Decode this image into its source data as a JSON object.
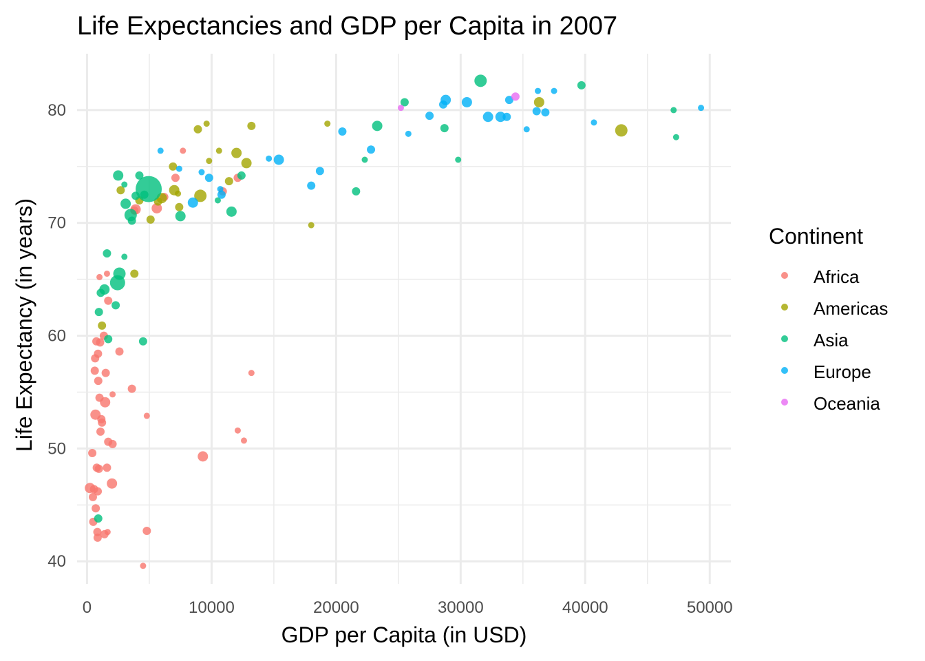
{
  "chart_data": {
    "type": "scatter",
    "title": "Life Expectancies and GDP per Capita in 2007",
    "xlabel": "GDP per Capita (in USD)",
    "ylabel": "Life Expectancy (in years)",
    "xlim": [
      -800,
      51700
    ],
    "ylim": [
      38,
      85
    ],
    "x_ticks": [
      0,
      10000,
      20000,
      30000,
      40000,
      50000
    ],
    "y_ticks": [
      40,
      50,
      60,
      70,
      80
    ],
    "grid": true,
    "legend": {
      "title": "Continent",
      "placement": "right",
      "entries": [
        "Africa",
        "Americas",
        "Asia",
        "Europe",
        "Oceania"
      ]
    },
    "colors": {
      "Africa": "#F8766D",
      "Americas": "#A3A500",
      "Asia": "#00BF7D",
      "Europe": "#00B0F6",
      "Oceania": "#E76BF3"
    },
    "series": [
      {
        "name": "Africa",
        "points": [
          [
            230,
            46.5,
            2
          ],
          [
            420,
            49.6,
            1
          ],
          [
            470,
            45.7,
            1
          ],
          [
            500,
            43.5,
            1
          ],
          [
            560,
            46.4,
            1
          ],
          [
            620,
            56.9,
            1
          ],
          [
            650,
            58.0,
            1
          ],
          [
            680,
            53.0,
            2
          ],
          [
            700,
            44.7,
            1
          ],
          [
            750,
            59.5,
            1
          ],
          [
            780,
            48.3,
            1
          ],
          [
            830,
            42.6,
            1
          ],
          [
            850,
            42.1,
            1
          ],
          [
            860,
            46.2,
            1
          ],
          [
            880,
            58.4,
            1
          ],
          [
            900,
            56.0,
            1
          ],
          [
            950,
            48.2,
            1
          ],
          [
            1000,
            54.5,
            1
          ],
          [
            1000,
            65.2,
            0
          ],
          [
            1050,
            59.4,
            1
          ],
          [
            1080,
            51.5,
            1
          ],
          [
            1150,
            52.6,
            1
          ],
          [
            1200,
            52.3,
            1
          ],
          [
            1350,
            60.0,
            1
          ],
          [
            1400,
            42.4,
            1
          ],
          [
            1450,
            54.1,
            2
          ],
          [
            1500,
            56.7,
            1
          ],
          [
            1600,
            48.3,
            1
          ],
          [
            1600,
            65.5,
            0
          ],
          [
            1700,
            50.6,
            1
          ],
          [
            1650,
            42.6,
            0
          ],
          [
            1700,
            63.1,
            1
          ],
          [
            2000,
            46.9,
            2
          ],
          [
            2050,
            50.4,
            1
          ],
          [
            2050,
            54.8,
            0
          ],
          [
            2600,
            58.6,
            1
          ],
          [
            3600,
            55.3,
            1
          ],
          [
            3800,
            71.1,
            1
          ],
          [
            3900,
            71.2,
            2
          ],
          [
            4500,
            39.6,
            0
          ],
          [
            4800,
            52.9,
            0
          ],
          [
            4800,
            42.7,
            1
          ],
          [
            5600,
            71.3,
            2
          ],
          [
            6200,
            72.3,
            1
          ],
          [
            7100,
            74.0,
            1
          ],
          [
            7700,
            76.4,
            0
          ],
          [
            9300,
            49.3,
            2
          ],
          [
            10900,
            72.8,
            1
          ],
          [
            12100,
            51.6,
            0
          ],
          [
            12600,
            50.7,
            0
          ],
          [
            12100,
            74.0,
            1
          ],
          [
            13200,
            56.7,
            0
          ]
        ]
      },
      {
        "name": "Americas",
        "points": [
          [
            1200,
            60.9,
            1
          ],
          [
            2700,
            72.9,
            1
          ],
          [
            3800,
            65.5,
            1
          ],
          [
            4200,
            72.0,
            1
          ],
          [
            5100,
            70.3,
            1
          ],
          [
            5700,
            71.9,
            1
          ],
          [
            6000,
            72.2,
            2
          ],
          [
            6900,
            75.0,
            1
          ],
          [
            7000,
            72.9,
            2
          ],
          [
            7300,
            72.6,
            0
          ],
          [
            7400,
            71.4,
            1
          ],
          [
            8900,
            78.3,
            1
          ],
          [
            9100,
            72.4,
            3
          ],
          [
            9600,
            78.8,
            0
          ],
          [
            9800,
            75.5,
            0
          ],
          [
            10600,
            76.4,
            0
          ],
          [
            11400,
            73.7,
            1
          ],
          [
            12000,
            76.2,
            2
          ],
          [
            12800,
            75.3,
            2
          ],
          [
            13200,
            78.6,
            1
          ],
          [
            18000,
            69.8,
            0
          ],
          [
            19300,
            78.8,
            0
          ],
          [
            36300,
            80.7,
            2
          ],
          [
            42900,
            78.2,
            3
          ]
        ]
      },
      {
        "name": "Asia",
        "points": [
          [
            900,
            43.8,
            1
          ],
          [
            950,
            62.1,
            1
          ],
          [
            1100,
            63.8,
            1
          ],
          [
            1400,
            64.1,
            2
          ],
          [
            1600,
            67.3,
            1
          ],
          [
            1700,
            59.7,
            1
          ],
          [
            2300,
            62.7,
            1
          ],
          [
            2500,
            74.2,
            2
          ],
          [
            2600,
            65.5,
            3
          ],
          [
            2450,
            64.7,
            4
          ],
          [
            3000,
            67.0,
            0
          ],
          [
            3100,
            71.7,
            2
          ],
          [
            3000,
            73.4,
            0
          ],
          [
            3500,
            70.7,
            3
          ],
          [
            3600,
            70.2,
            1
          ],
          [
            3900,
            72.4,
            1
          ],
          [
            4200,
            74.2,
            1
          ],
          [
            4500,
            59.5,
            1
          ],
          [
            4600,
            72.5,
            1
          ],
          [
            4950,
            73.0,
            5
          ],
          [
            7500,
            70.6,
            2
          ],
          [
            10500,
            72.0,
            0
          ],
          [
            11600,
            71.0,
            2
          ],
          [
            12400,
            74.2,
            1
          ],
          [
            21600,
            72.8,
            1
          ],
          [
            22300,
            75.6,
            0
          ],
          [
            23300,
            78.6,
            2
          ],
          [
            25500,
            80.7,
            1
          ],
          [
            28700,
            78.4,
            1
          ],
          [
            29800,
            75.6,
            0
          ],
          [
            31600,
            82.6,
            3
          ],
          [
            39700,
            82.2,
            1
          ],
          [
            47100,
            80.0,
            0
          ],
          [
            47300,
            77.6,
            0
          ]
        ]
      },
      {
        "name": "Europe",
        "points": [
          [
            5900,
            76.4,
            0
          ],
          [
            7400,
            74.8,
            0
          ],
          [
            8500,
            71.8,
            2
          ],
          [
            9200,
            74.5,
            0
          ],
          [
            9800,
            74.0,
            1
          ],
          [
            10700,
            73.0,
            0
          ],
          [
            10800,
            72.5,
            1
          ],
          [
            14600,
            75.7,
            0
          ],
          [
            15400,
            75.6,
            2
          ],
          [
            18000,
            73.3,
            1
          ],
          [
            18700,
            74.6,
            1
          ],
          [
            20500,
            78.1,
            1
          ],
          [
            22800,
            76.5,
            1
          ],
          [
            25800,
            77.9,
            0
          ],
          [
            27500,
            79.5,
            1
          ],
          [
            28600,
            80.5,
            1
          ],
          [
            28800,
            80.9,
            2
          ],
          [
            30500,
            80.7,
            2
          ],
          [
            32200,
            79.4,
            2
          ],
          [
            33200,
            79.4,
            2
          ],
          [
            33700,
            79.4,
            1
          ],
          [
            33900,
            80.9,
            1
          ],
          [
            35300,
            78.3,
            0
          ],
          [
            36100,
            79.9,
            1
          ],
          [
            36200,
            81.7,
            0
          ],
          [
            36800,
            79.8,
            1
          ],
          [
            37500,
            81.7,
            0
          ],
          [
            40700,
            78.9,
            0
          ],
          [
            49300,
            80.2,
            0
          ]
        ]
      },
      {
        "name": "Oceania",
        "points": [
          [
            25200,
            80.2,
            0
          ],
          [
            34400,
            81.2,
            1
          ]
        ]
      }
    ]
  }
}
